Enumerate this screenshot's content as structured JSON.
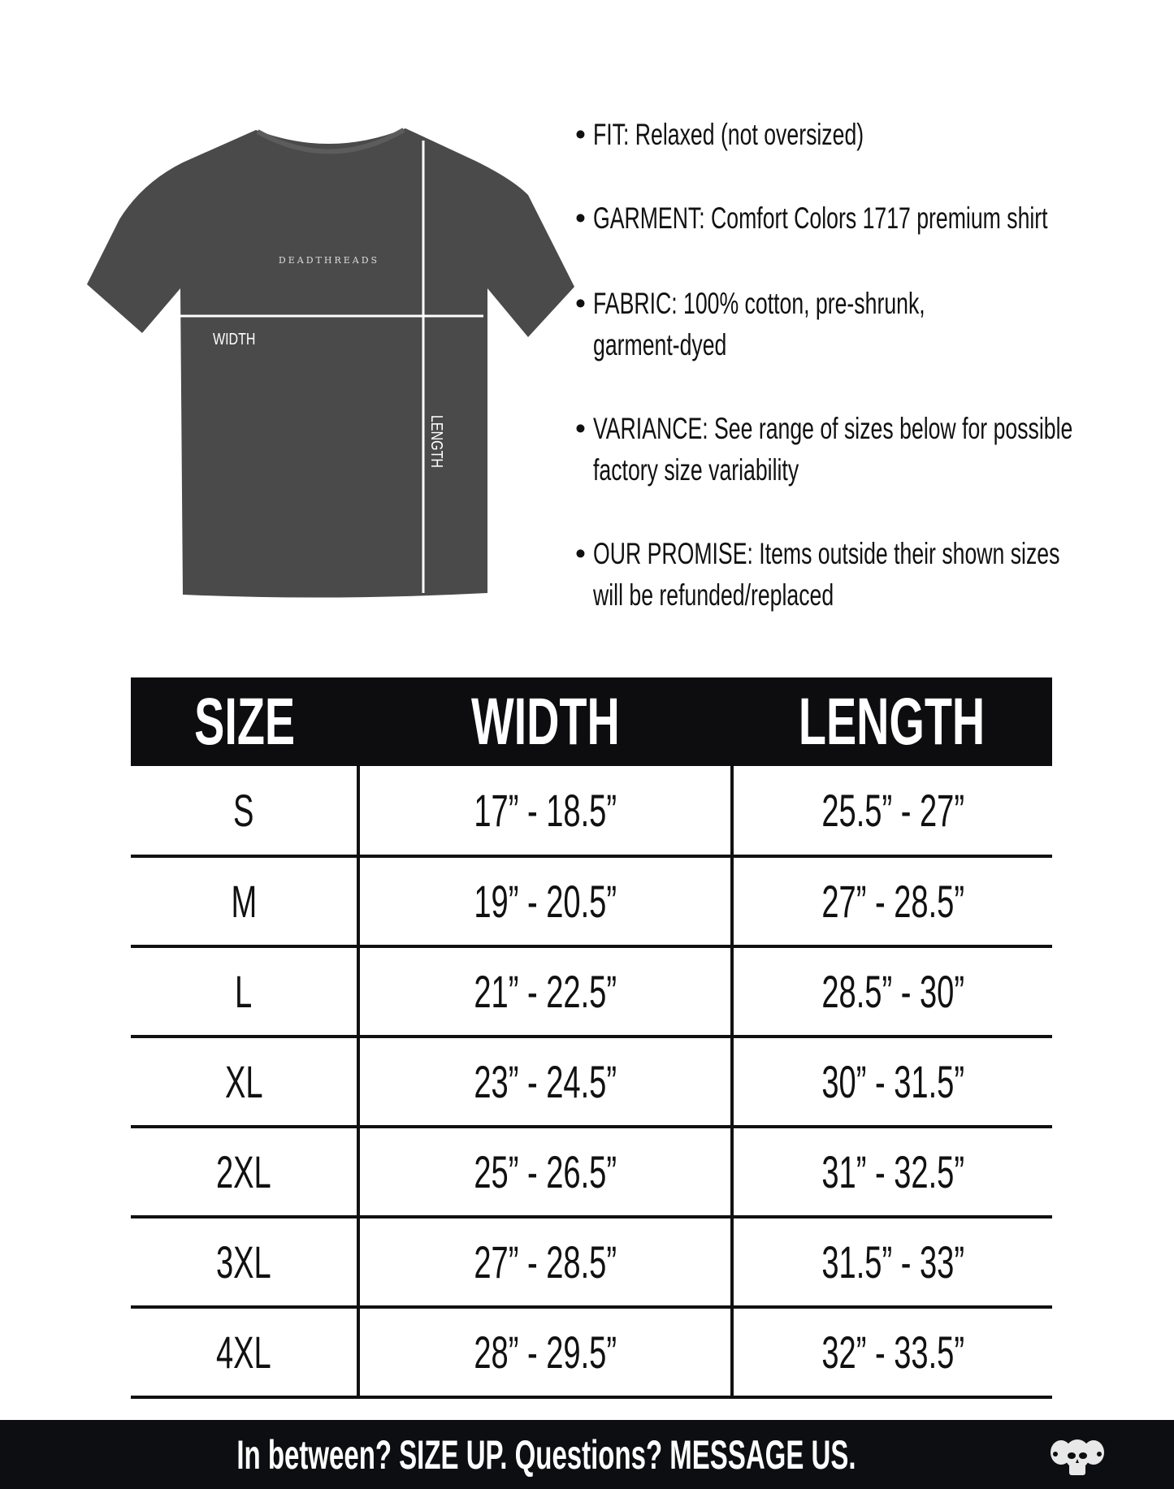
{
  "shirt": {
    "brand_print": "DEADTHREADS",
    "width_label": "WIDTH",
    "length_label": "LENGTH",
    "color": "#4a4a4a"
  },
  "bullets": [
    {
      "lines": [
        "FIT: Relaxed (not oversized)"
      ]
    },
    {
      "lines": [
        "GARMENT: Comfort Colors 1717 premium shirt"
      ]
    },
    {
      "lines": [
        "FABRIC: 100% cotton, pre-shrunk,",
        "garment-dyed"
      ]
    },
    {
      "lines": [
        "VARIANCE: See range of sizes below for possible",
        "factory size variability"
      ]
    },
    {
      "lines": [
        "OUR PROMISE: Items outside their shown sizes",
        "will be refunded/replaced"
      ]
    }
  ],
  "table": {
    "headers": [
      "SIZE",
      "WIDTH",
      "LENGTH"
    ],
    "rows": [
      [
        "S",
        "17” - 18.5”",
        "25.5” - 27”"
      ],
      [
        "M",
        "19” - 20.5”",
        "27” - 28.5”"
      ],
      [
        "L",
        "21” - 22.5”",
        "28.5” - 30”"
      ],
      [
        "XL",
        "23” - 24.5”",
        "30” - 31.5”"
      ],
      [
        "2XL",
        "25” - 26.5”",
        "31” - 32.5”"
      ],
      [
        "3XL",
        "27” - 28.5”",
        "31.5” - 33”"
      ],
      [
        "4XL",
        "28” - 29.5”",
        "32” - 33.5”"
      ]
    ]
  },
  "footer": {
    "message": "In between? SIZE UP. Questions? MESSAGE US.",
    "logo": "three-skulls-logo"
  }
}
